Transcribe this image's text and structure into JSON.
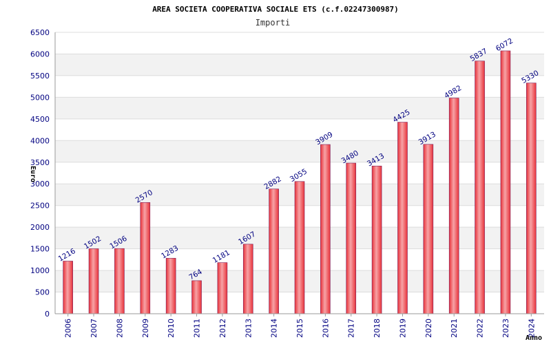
{
  "chart_data": {
    "type": "bar",
    "title": "AREA SOCIETA COOPERATIVA SOCIALE ETS (c.f.02247300987)",
    "subtitle": "Importi",
    "xlabel": "Anno",
    "ylabel": "Euro",
    "categories": [
      "2006",
      "2007",
      "2008",
      "2009",
      "2010",
      "2011",
      "2012",
      "2013",
      "2014",
      "2015",
      "2016",
      "2017",
      "2018",
      "2019",
      "2020",
      "2021",
      "2022",
      "2023",
      "2024"
    ],
    "values": [
      1216,
      1502,
      1506,
      2570,
      1283,
      764,
      1181,
      1607,
      2882,
      3055,
      3909,
      3480,
      3413,
      4425,
      3913,
      4982,
      5837,
      6072,
      5330
    ],
    "ylim": [
      0,
      6500
    ],
    "yticks": [
      0,
      500,
      1000,
      1500,
      2000,
      2500,
      3000,
      3500,
      4000,
      4500,
      5000,
      5500,
      6000,
      6500
    ],
    "grid": true,
    "colors": {
      "bar": "#e8323a",
      "bar_light": "#f7a3a6",
      "bar_edge": "#7b1f5a",
      "band": "#f2f2f2",
      "grid": "#dcdcdc",
      "label": "#000080"
    }
  }
}
